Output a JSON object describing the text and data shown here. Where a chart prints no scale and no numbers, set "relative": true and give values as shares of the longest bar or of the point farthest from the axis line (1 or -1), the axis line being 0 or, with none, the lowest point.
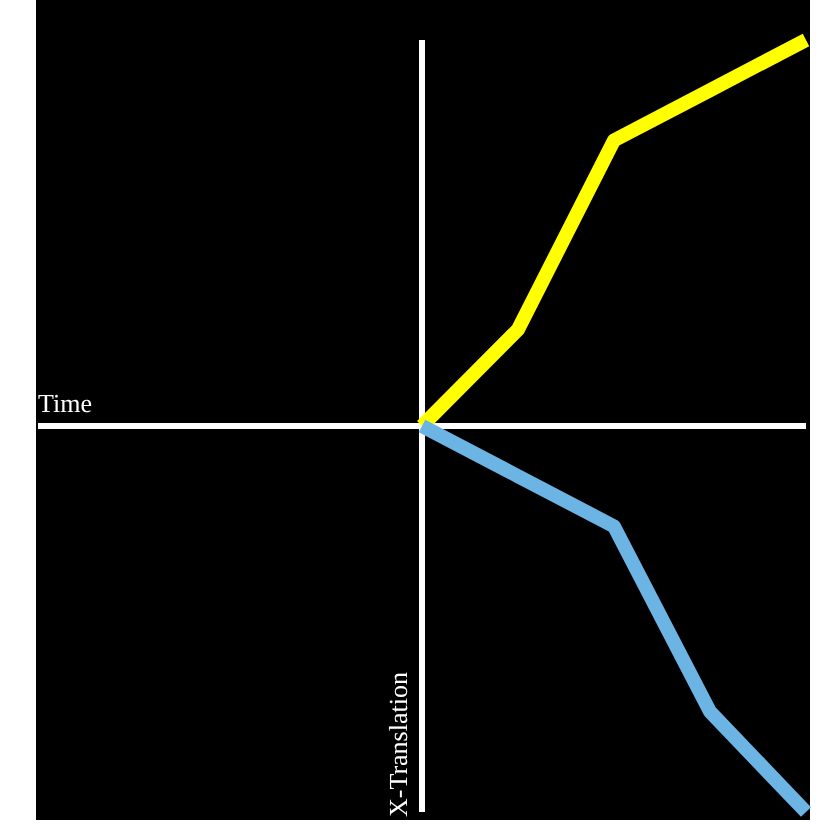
{
  "chart_data": {
    "type": "line",
    "relative": true,
    "annotations": [
      "Time"
    ],
    "ylabel": "X-Translation",
    "categories": [
      null,
      null,
      null,
      null,
      null
    ],
    "series": [
      {
        "color": "#ffff00",
        "values": [
          0,
          0.25,
          0.74,
          0.87,
          1
        ]
      },
      {
        "color": "#6cb4e4",
        "values": [
          0,
          -0.13,
          -0.26,
          -0.74,
          -1
        ]
      }
    ],
    "grid": false,
    "tick_labels": false
  }
}
